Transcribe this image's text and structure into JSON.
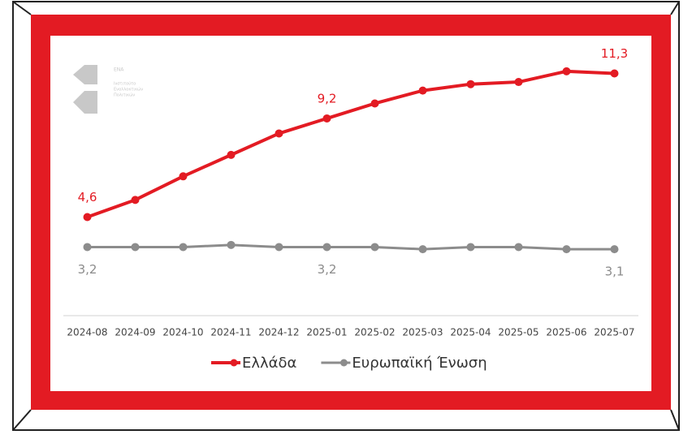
{
  "logo": {
    "name": "ΕΝΑ",
    "lines": [
      "Ινστιτούτο",
      "Εναλλακτικών",
      "Πολιτικών"
    ]
  },
  "chart_data": {
    "type": "line",
    "categories": [
      "2024-08",
      "2024-09",
      "2024-10",
      "2024-11",
      "2024-12",
      "2025-01",
      "2025-02",
      "2025-03",
      "2025-04",
      "2025-05",
      "2025-06",
      "2025-07"
    ],
    "series": [
      {
        "name": "Ελλάδα",
        "color": "#e31b23",
        "values": [
          4.6,
          5.4,
          6.5,
          7.5,
          8.5,
          9.2,
          9.9,
          10.5,
          10.8,
          10.9,
          11.4,
          11.3
        ],
        "value_labels": [
          "4,6",
          null,
          null,
          null,
          null,
          "9,2",
          null,
          null,
          null,
          null,
          null,
          "11,3"
        ]
      },
      {
        "name": "Ευρωπαϊκή Ένωση",
        "color": "#8c8c8c",
        "values": [
          3.2,
          3.2,
          3.2,
          3.3,
          3.2,
          3.2,
          3.2,
          3.1,
          3.2,
          3.2,
          3.1,
          3.1
        ],
        "value_labels": [
          "3,2",
          null,
          null,
          null,
          null,
          "3,2",
          null,
          null,
          null,
          null,
          null,
          "3,1"
        ]
      }
    ],
    "ylim": [
      0,
      12
    ],
    "grid": false,
    "legend": "bottom"
  }
}
